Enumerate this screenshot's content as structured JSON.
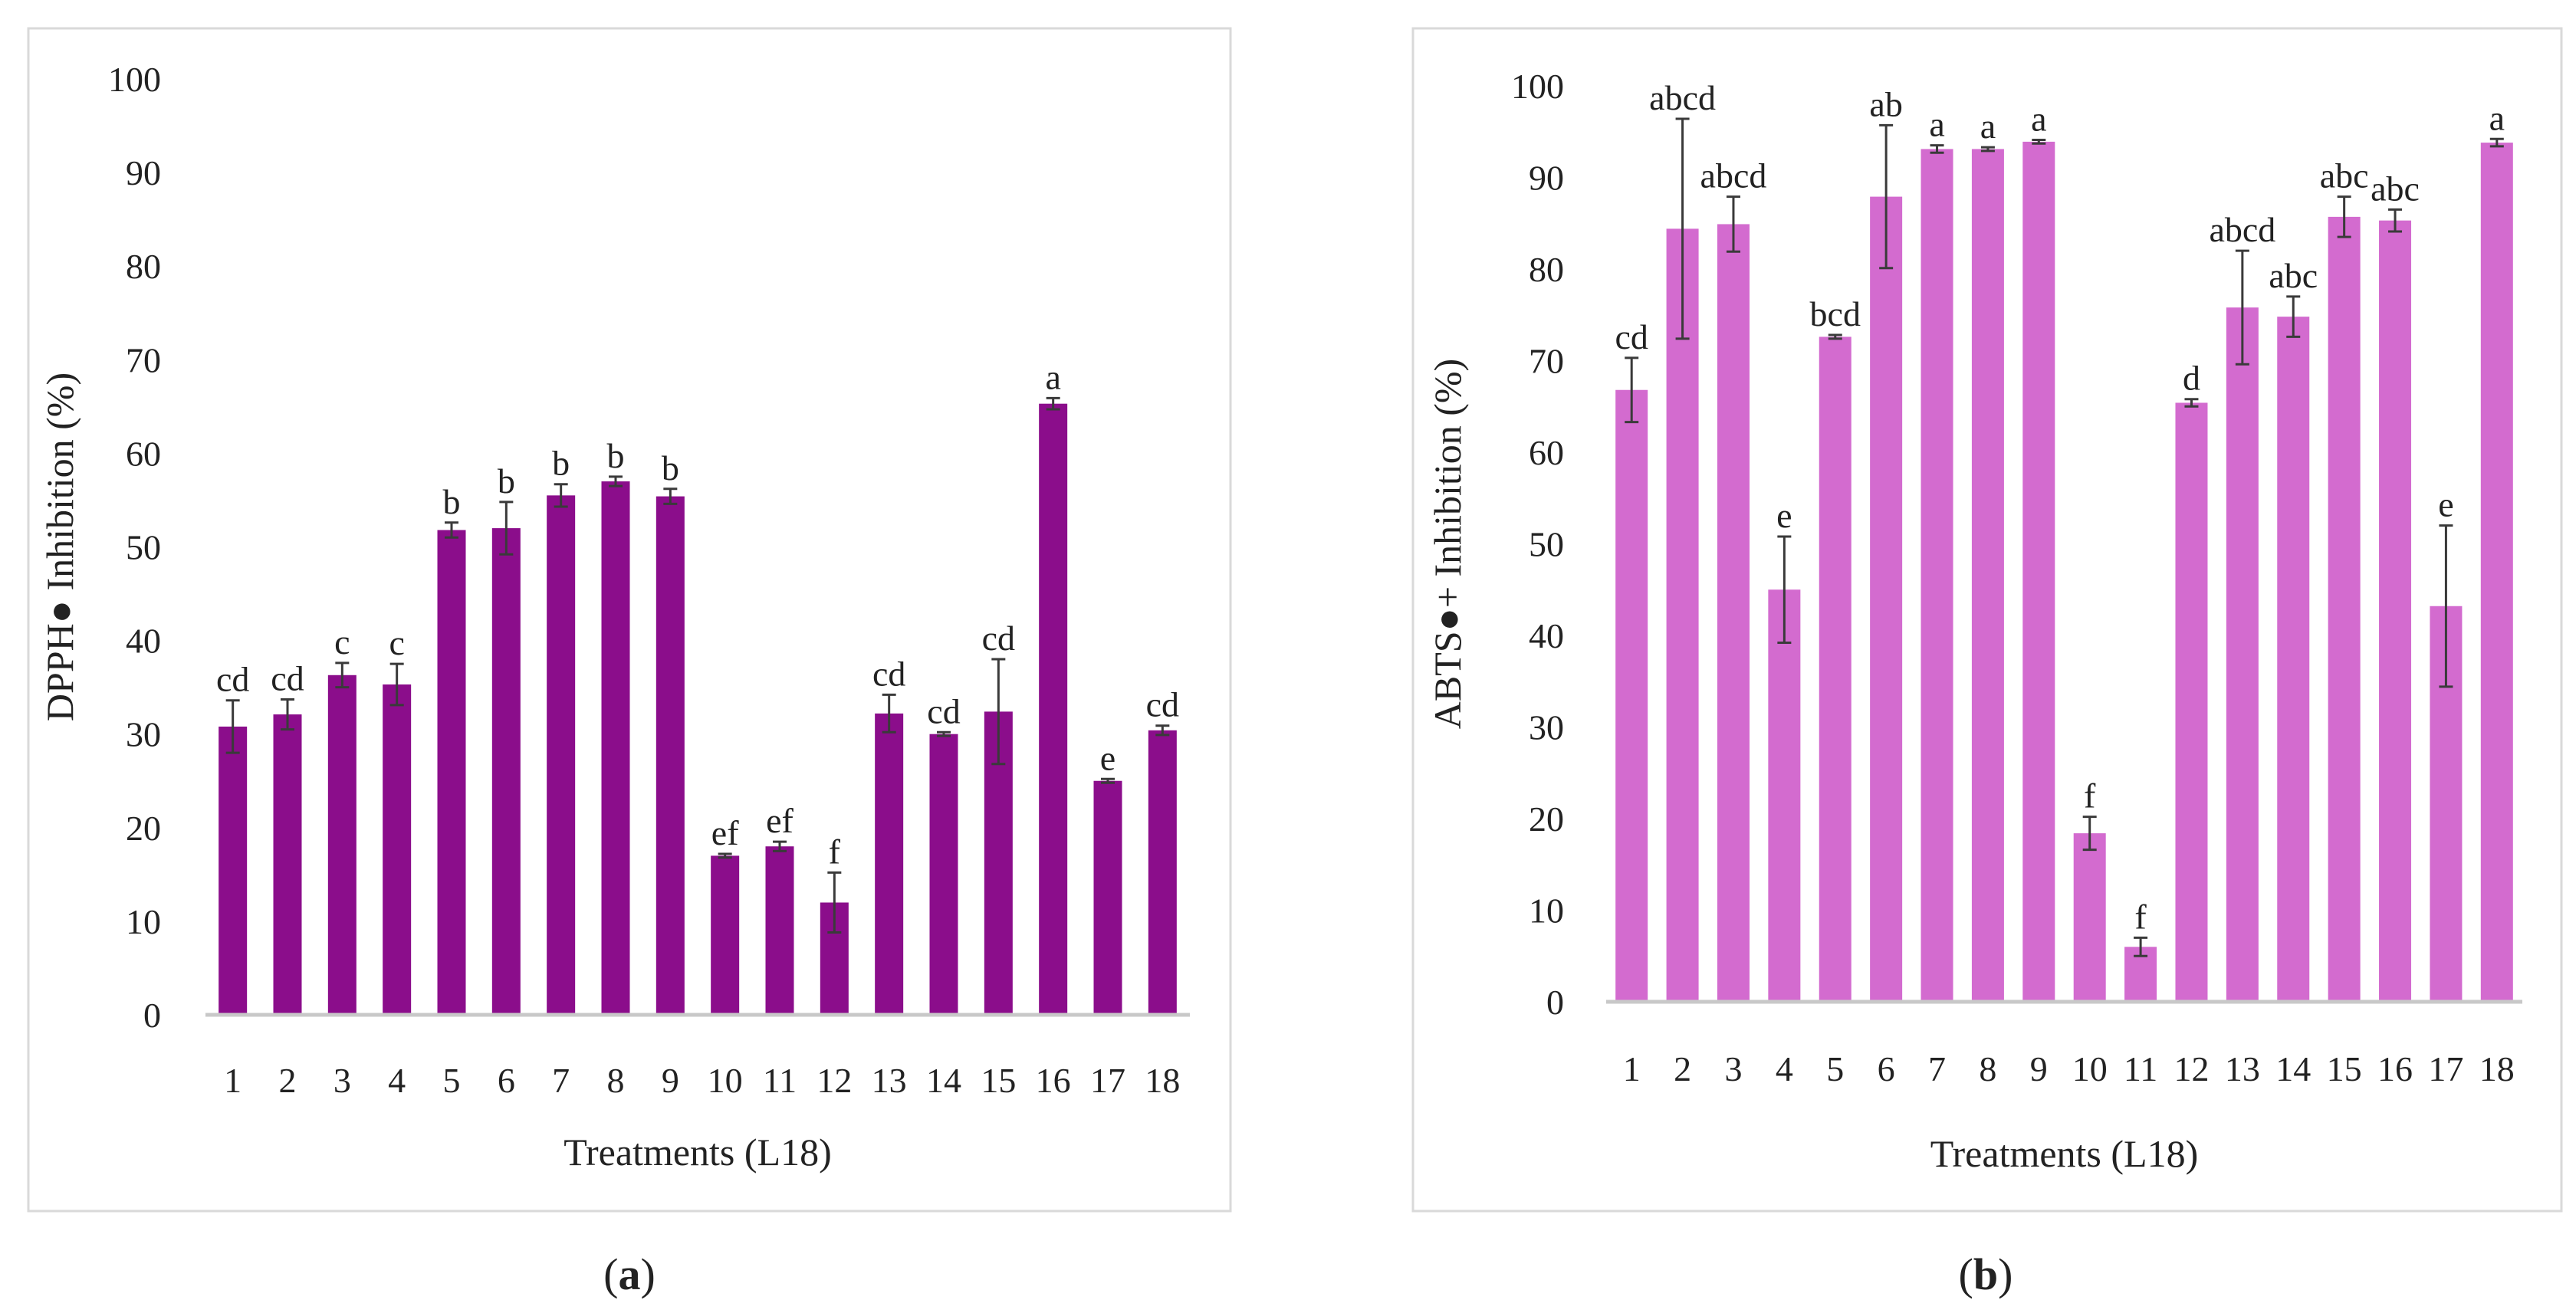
{
  "chart_data": [
    {
      "type": "bar",
      "panel_label": "(a)",
      "panel_label_parts": [
        "(",
        "a",
        ")"
      ],
      "xlabel": "Treatments (L18)",
      "ylabel": "DPPH● Inhibition (%)",
      "ylim": [
        0,
        100
      ],
      "yticks": [
        0,
        10,
        20,
        30,
        40,
        50,
        60,
        70,
        80,
        90,
        100
      ],
      "grid": false,
      "color": "#8b0d8b",
      "categories": [
        "1",
        "2",
        "3",
        "4",
        "5",
        "6",
        "7",
        "8",
        "9",
        "10",
        "11",
        "12",
        "13",
        "14",
        "15",
        "16",
        "17",
        "18"
      ],
      "values": [
        30.8,
        32.1,
        36.3,
        35.3,
        51.8,
        52.0,
        55.5,
        57.0,
        55.4,
        17.0,
        18.0,
        12.0,
        32.2,
        30.0,
        32.4,
        65.3,
        25.0,
        30.4
      ],
      "errors": [
        2.8,
        1.6,
        1.3,
        2.2,
        0.8,
        2.8,
        1.2,
        0.5,
        0.8,
        0.2,
        0.5,
        3.2,
        2.0,
        0.2,
        5.6,
        0.6,
        0.2,
        0.5
      ],
      "significance": [
        "cd",
        "cd",
        "c",
        "c",
        "b",
        "b",
        "b",
        "b",
        "b",
        "ef",
        "ef",
        "f",
        "cd",
        "cd",
        "cd",
        "a",
        "e",
        "cd"
      ]
    },
    {
      "type": "bar",
      "panel_label": "(b)",
      "panel_label_parts": [
        "(",
        "b",
        ")"
      ],
      "xlabel": "Treatments (L18)",
      "ylabel": "ABTS●+ Inhibition (%)",
      "ylim": [
        0,
        100
      ],
      "yticks": [
        0,
        10,
        20,
        30,
        40,
        50,
        60,
        70,
        80,
        90,
        100
      ],
      "grid": false,
      "color": "#d36bcf",
      "categories": [
        "1",
        "2",
        "3",
        "4",
        "5",
        "6",
        "7",
        "8",
        "9",
        "10",
        "11",
        "12",
        "13",
        "14",
        "15",
        "16",
        "17",
        "18"
      ],
      "values": [
        66.8,
        84.4,
        84.9,
        45.0,
        72.6,
        87.9,
        93.1,
        93.1,
        93.9,
        18.4,
        6.0,
        65.4,
        75.8,
        74.8,
        85.7,
        85.3,
        43.2,
        93.8
      ],
      "errors": [
        3.5,
        12.0,
        3.0,
        5.8,
        0.2,
        7.8,
        0.4,
        0.2,
        0.2,
        1.8,
        1.0,
        0.4,
        6.2,
        2.2,
        2.2,
        1.2,
        8.8,
        0.4
      ],
      "significance": [
        "cd",
        "abcd",
        "abcd",
        "e",
        "bcd",
        "ab",
        "a",
        "a",
        "a",
        "f",
        "f",
        "d",
        "abcd",
        "abc",
        "abc",
        "abc",
        "e",
        "a"
      ]
    }
  ]
}
